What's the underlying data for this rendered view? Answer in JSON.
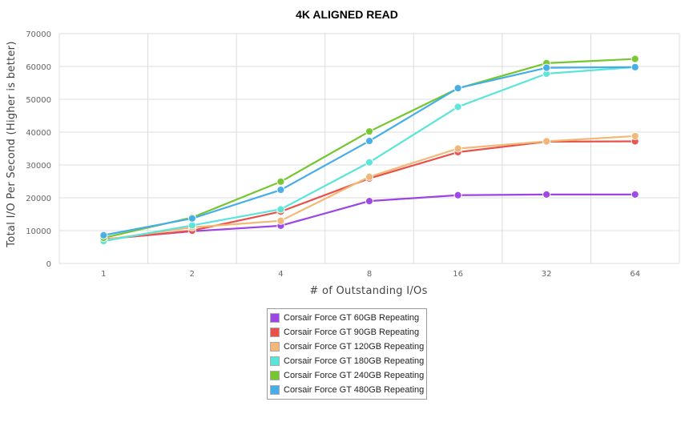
{
  "chart_data": {
    "type": "line",
    "title": "4K ALIGNED READ",
    "xlabel": "# of Outstanding I/Os",
    "ylabel": "Total I/O Per Second (Higher is better)",
    "x": [
      "1",
      "2",
      "4",
      "8",
      "16",
      "32",
      "64"
    ],
    "ylim": [
      0,
      70000
    ],
    "yticks": [
      "0",
      "10000",
      "20000",
      "30000",
      "40000",
      "50000",
      "60000",
      "70000"
    ],
    "grid": true,
    "legend_position": "bottom",
    "series": [
      {
        "name": "Corsair Force GT 60GB Repeating",
        "color": "#9b45e4",
        "values": [
          7400,
          9800,
          11500,
          19000,
          20800,
          21000,
          21000
        ]
      },
      {
        "name": "Corsair Force GT 90GB Repeating",
        "color": "#e9504a",
        "values": [
          7300,
          10000,
          15800,
          25900,
          33900,
          37100,
          37200
        ]
      },
      {
        "name": "Corsair Force GT 120GB Repeating",
        "color": "#f2b878",
        "values": [
          7200,
          11000,
          13000,
          26400,
          35000,
          37200,
          38800
        ]
      },
      {
        "name": "Corsair Force GT 180GB Repeating",
        "color": "#5ae5d8",
        "values": [
          6800,
          11600,
          16500,
          30800,
          47700,
          57800,
          59800
        ]
      },
      {
        "name": "Corsair Force GT 240GB Repeating",
        "color": "#75c62f",
        "values": [
          7800,
          14000,
          24900,
          40200,
          53300,
          61000,
          62300
        ]
      },
      {
        "name": "Corsair Force GT 480GB Repeating",
        "color": "#45aee8",
        "values": [
          8600,
          13700,
          22400,
          37300,
          53400,
          59600,
          59800
        ]
      }
    ]
  }
}
